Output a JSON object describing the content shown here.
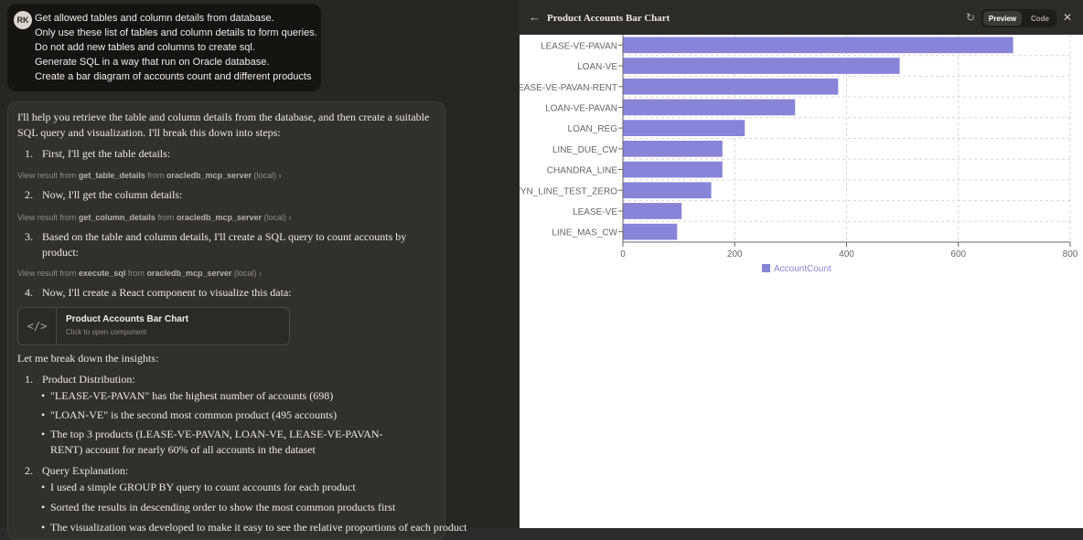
{
  "user_message": {
    "avatar_initials": "RK",
    "lines": [
      "Get allowed tables and column details from database.",
      "Only use these list of tables and column details to form queries.",
      "Do not add new tables and columns to create sql.",
      "Generate SQL in a way that run on Oracle database.",
      "Create a bar diagram of accounts count and different products"
    ]
  },
  "assistant": {
    "intro": "I'll help you retrieve the table and column details from the database, and then create a suitable SQL query and visualization. I'll break this down into steps:",
    "steps": [
      {
        "num": "1.",
        "text": "First, I'll get the table details:"
      },
      {
        "num": "2.",
        "text": "Now, I'll get the column details:"
      },
      {
        "num": "3.",
        "text": "Based on the table and column details, I'll create a SQL query to count accounts by product:"
      },
      {
        "num": "4.",
        "text": "Now, I'll create a React component to visualize this data:"
      }
    ],
    "results": [
      {
        "prefix": "View result from",
        "tool": "get_table_details",
        "mid": "from",
        "server": "oracledb_mcp_server",
        "suffix": "(local)",
        "chev": "›"
      },
      {
        "prefix": "View result from",
        "tool": "get_column_details",
        "mid": "from",
        "server": "oracledb_mcp_server",
        "suffix": "(local)",
        "chev": "›"
      },
      {
        "prefix": "View result from",
        "tool": "execute_sql",
        "mid": "from",
        "server": "oracledb_mcp_server",
        "suffix": "(local)",
        "chev": "›"
      }
    ],
    "artifact": {
      "icon": "</>",
      "title": "Product Accounts Bar Chart",
      "subtitle": "Click to open component"
    },
    "insights_intro": "Let me break down the insights:",
    "sections": [
      {
        "num": "1.",
        "title": "Product Distribution:"
      },
      {
        "num": "2.",
        "title": "Query Explanation:"
      }
    ],
    "bullets1": [
      "\"LEASE-VE-PAVAN\" has the highest number of accounts (698)",
      "\"LOAN-VE\" is the second most common product (495 accounts)",
      "The top 3 products (LEASE-VE-PAVAN, LOAN-VE, LEASE-VE-PAVAN-RENT) account for nearly 60% of all accounts in the dataset"
    ],
    "bullets2": [
      "I used a simple GROUP BY query to count accounts for each product",
      "Sorted the results in descending order to show the most common products first",
      "The visualization was developed to make it easy to see the relative proportions of each product"
    ]
  },
  "panel": {
    "back_icon": "←",
    "title": "Product Accounts Bar Chart",
    "refresh_icon": "↻",
    "preview_label": "Preview",
    "code_label": "Code",
    "close_icon": "✕"
  },
  "chart_data": {
    "type": "bar",
    "orientation": "horizontal",
    "categories": [
      "LEASE-VE-PAVAN",
      "LOAN-VE",
      "LEASE-VE-PAVAN-RENT",
      "LOAN-VE-PAVAN",
      "LOAN_REG",
      "LINE_DUE_CW",
      "CHANDRA_LINE",
      "WYN_LINE_TEST_ZERO",
      "LEASE-VE",
      "LINE_MAS_CW"
    ],
    "series": [
      {
        "name": "AccountCount",
        "values": [
          698,
          495,
          385,
          308,
          218,
          178,
          178,
          158,
          105,
          97
        ],
        "color": "#8884d8"
      }
    ],
    "xlim": [
      0,
      800
    ],
    "xticks": [
      0,
      200,
      400,
      600,
      800
    ],
    "grid": true,
    "legend": "bottom"
  }
}
